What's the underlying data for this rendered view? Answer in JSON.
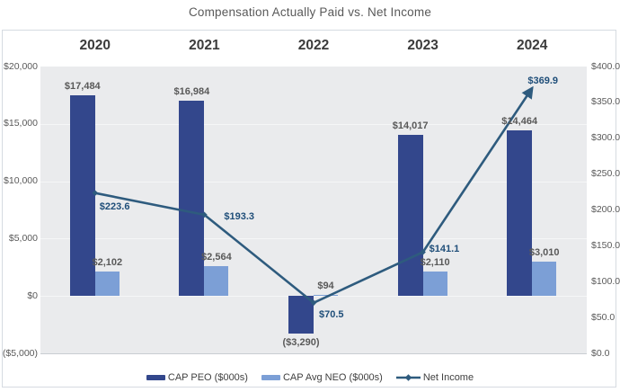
{
  "chart_data": {
    "type": "combo bar+line",
    "title": "Compensation Actually Paid vs. Net Income",
    "categories": [
      "2020",
      "2021",
      "2022",
      "2023",
      "2024"
    ],
    "series": [
      {
        "name": "CAP PEO ($000s)",
        "type": "bar",
        "axis": "left",
        "color": "#33478C",
        "values": [
          17484,
          16984,
          -3290,
          14017,
          14464
        ],
        "labels": [
          "$17,484",
          "$16,984",
          "($3,290)",
          "$14,017",
          "$14,464"
        ]
      },
      {
        "name": "CAP Avg NEO ($000s)",
        "type": "bar",
        "axis": "left",
        "color": "#7C9FD6",
        "values": [
          2102,
          2564,
          94,
          2110,
          3010
        ],
        "labels": [
          "$2,102",
          "$2,564",
          "$94",
          "$2,110",
          "$3,010"
        ]
      },
      {
        "name": "Net Income",
        "type": "line",
        "axis": "right",
        "color": "#2E5B7E",
        "label_color": "#1F4E79",
        "end_arrow": true,
        "values": [
          223.6,
          193.3,
          70.5,
          141.1,
          369.9
        ],
        "labels": [
          "$223.6",
          "$193.3",
          "$70.5",
          "$141.1",
          "$369.9"
        ]
      }
    ],
    "left_axis": {
      "ticks": [
        "$20,000",
        "$15,000",
        "$10,000",
        "$5,000",
        "$0",
        "($5,000)"
      ],
      "min": -5000,
      "max": 20000
    },
    "right_axis": {
      "ticks": [
        "$400.0",
        "$350.0",
        "$300.0",
        "$250.0",
        "$200.0",
        "$150.0",
        "$100.0",
        "$50.0",
        "$0.0"
      ],
      "min": 0,
      "max": 400
    },
    "legend": [
      {
        "label": "CAP PEO ($000s)",
        "marker": "bar"
      },
      {
        "label": "CAP Avg NEO ($000s)",
        "marker": "bar"
      },
      {
        "label": "Net Income",
        "marker": "line-diamond"
      }
    ],
    "grid": "horizontal",
    "legend_position": "bottom"
  },
  "colors": {
    "plot_bg": "#EAEBED",
    "gridline": "#F5F6F7",
    "panel_border": "#D6DBE1",
    "axis_text": "#595959",
    "year_text": "#3B3B3B",
    "bar_dark": "#33478C",
    "bar_light": "#7C9FD6",
    "line": "#2E5B7E",
    "line_label": "#1F4E79"
  }
}
